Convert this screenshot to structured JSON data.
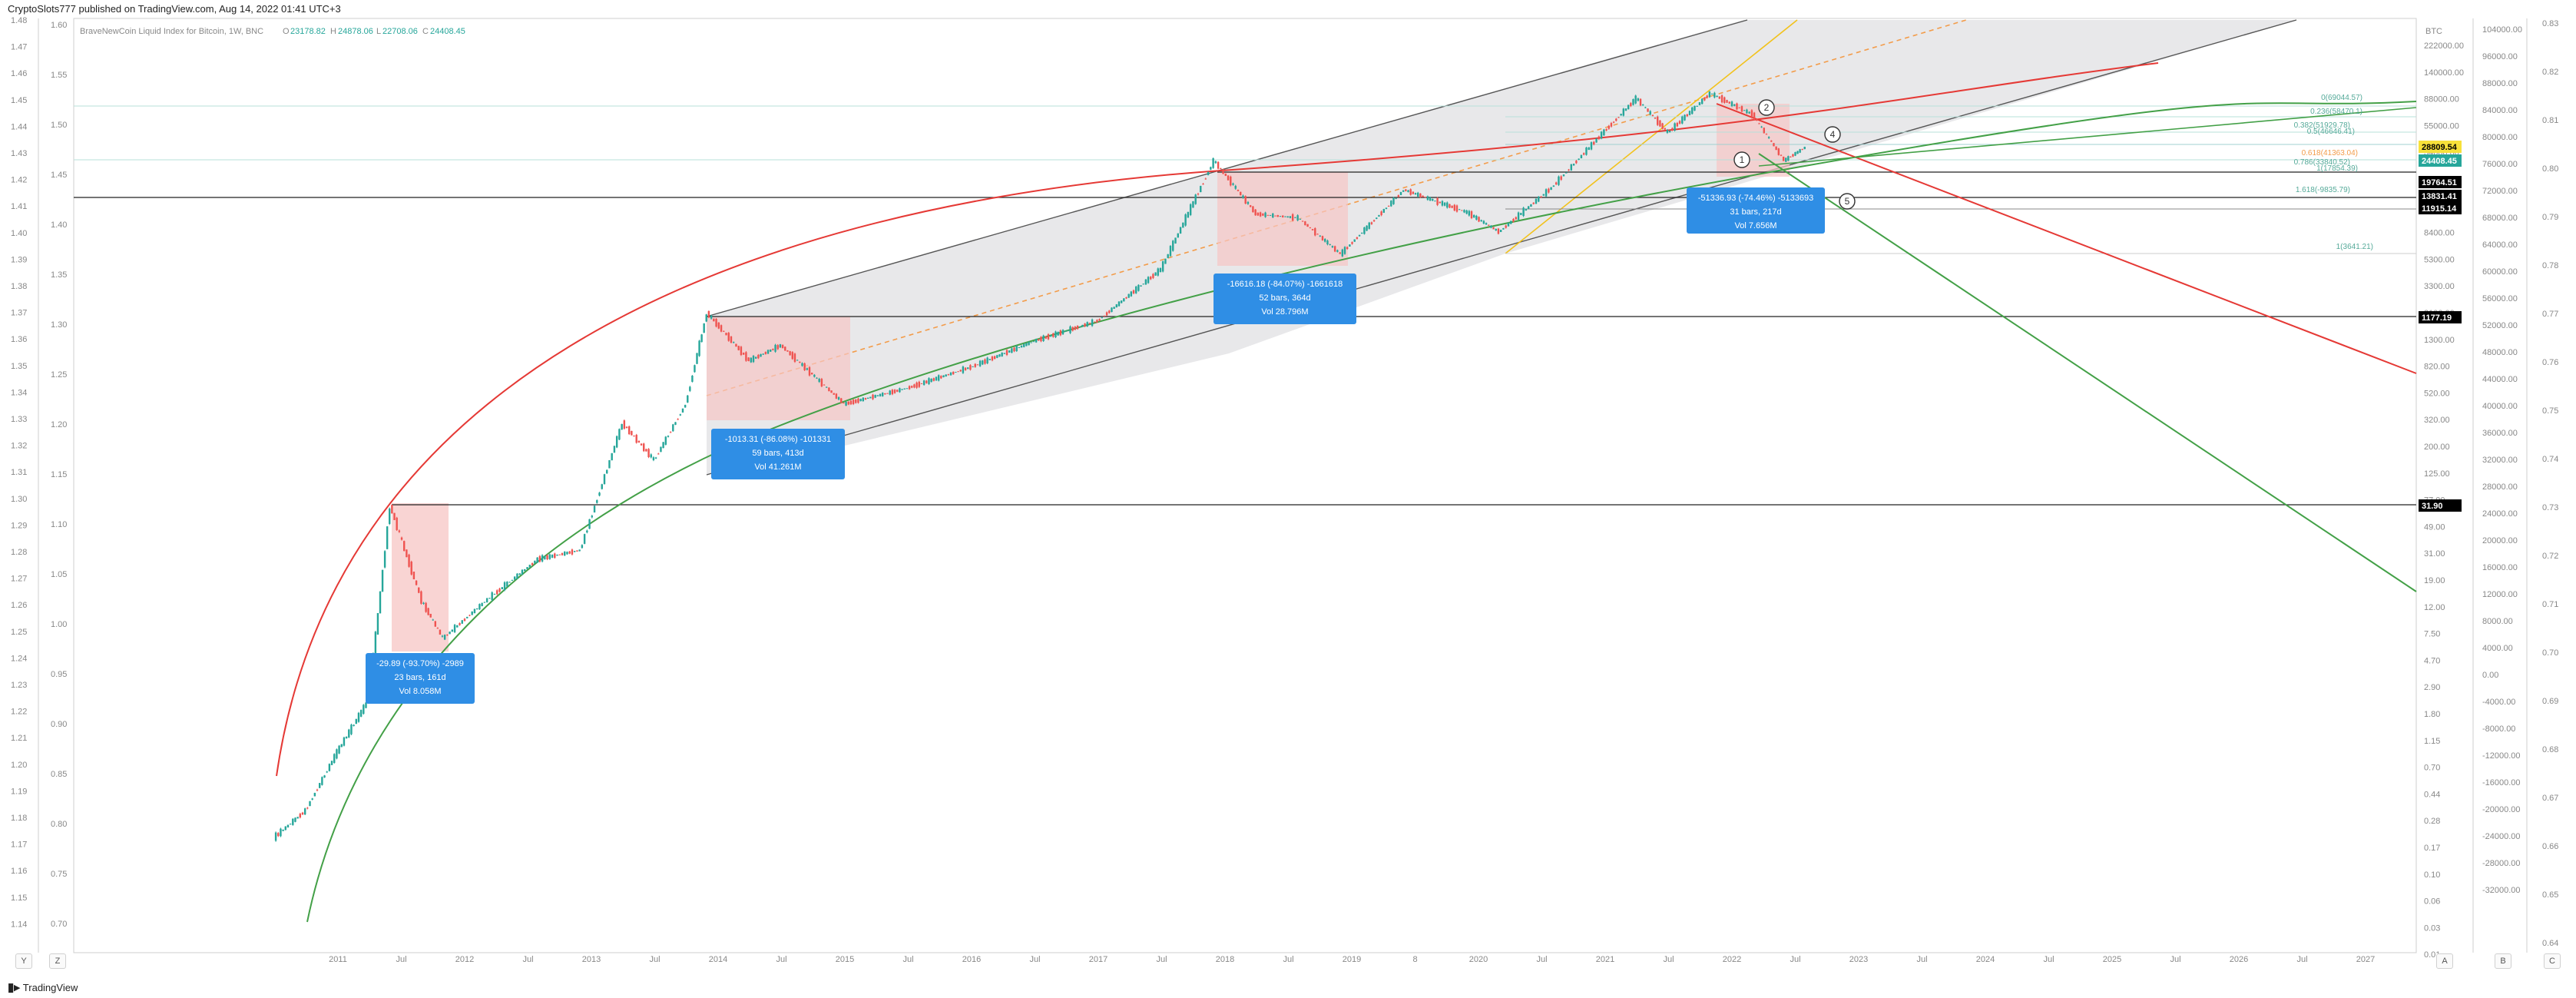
{
  "header": {
    "text": "CryptoSlots777 published on TradingView.com, Aug 14, 2022 01:41 UTC+3"
  },
  "legend": {
    "title": "BraveNewCoin Liquid Index for Bitcoin, 1W, BNC",
    "o_label": "O",
    "o": "23178.82",
    "h_label": "H",
    "h": "24878.06",
    "l_label": "L",
    "l": "22708.06",
    "c_label": "C",
    "c": "24408.45"
  },
  "left_axis_outer": [
    "1.48",
    "1.47",
    "1.46",
    "1.45",
    "1.44",
    "1.43",
    "1.42",
    "1.41",
    "1.40",
    "1.39",
    "1.38",
    "1.37",
    "1.36",
    "1.35",
    "1.34",
    "1.33",
    "1.32",
    "1.31",
    "1.30",
    "1.29",
    "1.28",
    "1.27",
    "1.26",
    "1.25",
    "1.24",
    "1.23",
    "1.22",
    "1.21",
    "1.20",
    "1.19",
    "1.18",
    "1.17",
    "1.16",
    "1.15",
    "1.14"
  ],
  "left_axis_inner": [
    "1.60",
    "1.55",
    "1.50",
    "1.45",
    "1.40",
    "1.35",
    "1.30",
    "1.25",
    "1.20",
    "1.15",
    "1.10",
    "1.05",
    "1.00",
    "0.95",
    "0.90",
    "0.85",
    "0.80",
    "0.75",
    "0.70"
  ],
  "right_axis_price_label": "BTC",
  "right_axis_price": [
    "222000.00",
    "140000.00",
    "88000.00",
    "55000.00",
    "34000.00",
    "21000.00",
    "13000.00",
    "8400.00",
    "5300.00",
    "3300.00",
    "2100.00",
    "1300.00",
    "820.00",
    "520.00",
    "320.00",
    "200.00",
    "125.00",
    "77.00",
    "49.00",
    "31.00",
    "19.00",
    "12.00",
    "7.50",
    "4.70",
    "2.90",
    "1.80",
    "1.15",
    "0.70",
    "0.44",
    "0.28",
    "0.17",
    "0.10",
    "0.06",
    "0.03",
    "0.01"
  ],
  "right_axis_2": [
    "104000.00",
    "96000.00",
    "88000.00",
    "84000.00",
    "80000.00",
    "76000.00",
    "72000.00",
    "68000.00",
    "64000.00",
    "60000.00",
    "56000.00",
    "52000.00",
    "48000.00",
    "44000.00",
    "40000.00",
    "36000.00",
    "32000.00",
    "28000.00",
    "24000.00",
    "20000.00",
    "16000.00",
    "12000.00",
    "8000.00",
    "4000.00",
    "0.00",
    "-4000.00",
    "-8000.00",
    "-12000.00",
    "-16000.00",
    "-20000.00",
    "-24000.00",
    "-28000.00",
    "-32000.00"
  ],
  "right_axis_3": [
    "0.83",
    "0.82",
    "0.81",
    "0.80",
    "0.79",
    "0.78",
    "0.77",
    "0.76",
    "0.75",
    "0.74",
    "0.73",
    "0.72",
    "0.71",
    "0.70",
    "0.69",
    "0.68",
    "0.67",
    "0.66",
    "0.65",
    "0.64"
  ],
  "price_tags": [
    {
      "text": "28809.54",
      "bg": "#f7e13a",
      "fg": "#000000"
    },
    {
      "text": "24408.45",
      "bg": "#26a69a",
      "fg": "#ffffff"
    },
    {
      "text": "19764.51",
      "bg": "#000000",
      "fg": "#ffffff"
    },
    {
      "text": "13831.41",
      "bg": "#000000",
      "fg": "#ffffff"
    },
    {
      "text": "11915.14",
      "bg": "#000000",
      "fg": "#ffffff"
    },
    {
      "text": "1177.19",
      "bg": "#000000",
      "fg": "#ffffff"
    },
    {
      "text": "31.90",
      "bg": "#000000",
      "fg": "#ffffff"
    }
  ],
  "fib_labels": [
    "0(69044.57)",
    "0.236(58470.1)",
    "0.382(51929.78)",
    "0.5(46646.41)",
    "0.618(41363.04)",
    "0.786(33840.52)",
    "1(17854.39)",
    "1.618(-9835.79)",
    "1(3641.21)"
  ],
  "time_axis": [
    "2011",
    "Jul",
    "2012",
    "Jul",
    "2013",
    "Jul",
    "2014",
    "Jul",
    "2015",
    "Jul",
    "2016",
    "Jul",
    "2017",
    "Jul",
    "2018",
    "Jul",
    "2019",
    "8",
    "2020",
    "Jul",
    "2021",
    "Jul",
    "2022",
    "Jul",
    "2023",
    "Jul",
    "2024",
    "Jul",
    "2025",
    "Jul",
    "2026",
    "Jul",
    "2027"
  ],
  "measure_boxes": [
    {
      "line1": "-29.89 (-93.70%) -2989",
      "line2": "23 bars, 161d",
      "line3": "Vol 8.058M"
    },
    {
      "line1": "-1013.31 (-86.08%) -101331",
      "line2": "59 bars, 413d",
      "line3": "Vol 41.261M"
    },
    {
      "line1": "-16616.18 (-84.07%) -1661618",
      "line2": "52 bars, 364d",
      "line3": "Vol 28.796M"
    },
    {
      "line1": "-51336.93 (-74.46%) -5133693",
      "line2": "31 bars, 217d",
      "line3": "Vol 7.656M"
    }
  ],
  "wave_labels": [
    "1",
    "2",
    "4",
    "5"
  ],
  "corner_buttons": {
    "left": "Y",
    "left2": "Z",
    "right1": "A",
    "right2": "B",
    "right3": "C"
  },
  "footer_logo": "TradingView",
  "colors": {
    "up": "#26a69a",
    "down": "#ef5350",
    "red_curve": "#e53935",
    "green_curve": "#43a047",
    "channel_fill": "#e6e6e8",
    "box_fill": "#f7c6c4",
    "measure_bg": "#2f8ee5",
    "yellow_line": "#f2c21b",
    "orange_dashed": "#f39c4a"
  },
  "chart_data": {
    "type": "line",
    "title": "BraveNewCoin Liquid Index for Bitcoin, 1W, BNC",
    "xlabel": "",
    "ylabel": "BTC",
    "log_scale": true,
    "xlim": [
      "2010-07",
      "2027-12"
    ],
    "ylim": [
      0.01,
      222000
    ],
    "series": [
      {
        "values": [
          {
            "x": "2010-07",
            "y": 0.06
          },
          {
            "x": "2010-10",
            "y": 0.1
          },
          {
            "x": "2011-01",
            "y": 0.3
          },
          {
            "x": "2011-04",
            "y": 0.8
          },
          {
            "x": "2011-06",
            "y": 30
          },
          {
            "x": "2011-09",
            "y": 5
          },
          {
            "x": "2011-11",
            "y": 2.5
          },
          {
            "x": "2012-03",
            "y": 5
          },
          {
            "x": "2012-08",
            "y": 11
          },
          {
            "x": "2012-12",
            "y": 13
          },
          {
            "x": "2013-04",
            "y": 140
          },
          {
            "x": "2013-07",
            "y": 70
          },
          {
            "x": "2013-10",
            "y": 200
          },
          {
            "x": "2013-12",
            "y": 1100
          },
          {
            "x": "2014-04",
            "y": 450
          },
          {
            "x": "2014-07",
            "y": 600
          },
          {
            "x": "2015-01",
            "y": 200
          },
          {
            "x": "2015-07",
            "y": 270
          },
          {
            "x": "2016-01",
            "y": 400
          },
          {
            "x": "2016-07",
            "y": 650
          },
          {
            "x": "2017-01",
            "y": 950
          },
          {
            "x": "2017-07",
            "y": 2500
          },
          {
            "x": "2017-12",
            "y": 19000
          },
          {
            "x": "2018-04",
            "y": 7000
          },
          {
            "x": "2018-08",
            "y": 6500
          },
          {
            "x": "2018-12",
            "y": 3300
          },
          {
            "x": "2019-06",
            "y": 11000
          },
          {
            "x": "2019-12",
            "y": 7200
          },
          {
            "x": "2020-03",
            "y": 5000
          },
          {
            "x": "2020-08",
            "y": 11500
          },
          {
            "x": "2021-01",
            "y": 33000
          },
          {
            "x": "2021-04",
            "y": 61000
          },
          {
            "x": "2021-07",
            "y": 32000
          },
          {
            "x": "2021-11",
            "y": 67000
          },
          {
            "x": "2022-03",
            "y": 45000
          },
          {
            "x": "2022-06",
            "y": 19000
          },
          {
            "x": "2022-08",
            "y": 24408
          }
        ]
      }
    ],
    "horizontal_levels": [
      28809.54,
      19764.51,
      13831.41,
      11915.14,
      1177.19,
      31.9
    ],
    "drawdowns": [
      {
        "from": "2011-06",
        "to": "2011-11",
        "pct": -93.7,
        "bars": 23,
        "days": 161
      },
      {
        "from": "2013-12",
        "to": "2015-01",
        "pct": -86.08,
        "bars": 59,
        "days": 413
      },
      {
        "from": "2017-12",
        "to": "2018-12",
        "pct": -84.07,
        "bars": 52,
        "days": 364
      },
      {
        "from": "2021-11",
        "to": "2022-06",
        "pct": -74.46,
        "bars": 31,
        "days": 217
      }
    ],
    "grid": false,
    "legend": "top-left"
  }
}
